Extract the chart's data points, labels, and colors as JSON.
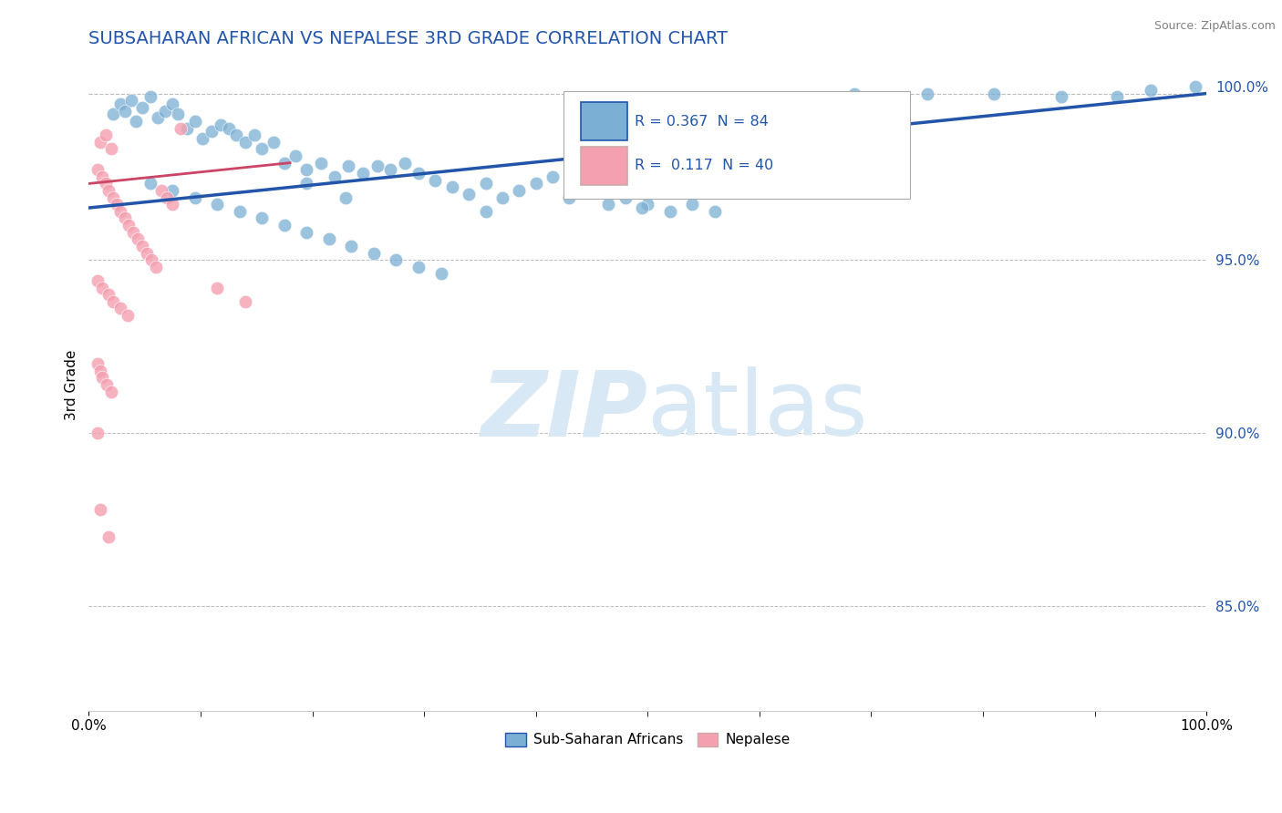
{
  "title": "SUBSAHARAN AFRICAN VS NEPALESE 3RD GRADE CORRELATION CHART",
  "title_color": "#4472C4",
  "ylabel": "3rd Grade",
  "source_text": "Source: ZipAtlas.com",
  "xlim": [
    0.0,
    1.0
  ],
  "ylim": [
    0.82,
    1.008
  ],
  "legend_items": [
    "Sub-Saharan Africans",
    "Nepalese"
  ],
  "blue_color": "#7BAFD4",
  "blue_line_color": "#2255AA",
  "pink_color": "#F4A0B0",
  "pink_line_color": "#CC4466",
  "dashed_color": "#BBBBBB",
  "bg_color": "#FFFFFF",
  "watermark_color": "#DDEEFF",
  "blue_r_text": "R = 0.367  N = 84",
  "pink_r_text": "R =  0.117  N = 40"
}
